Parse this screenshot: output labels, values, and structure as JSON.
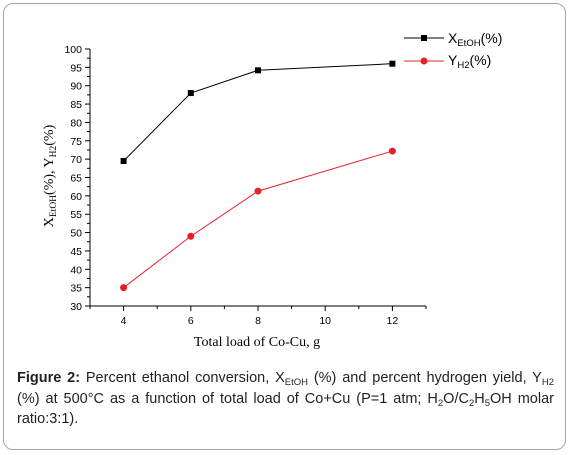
{
  "chart_data": {
    "type": "line",
    "x": [
      4,
      6,
      8,
      12
    ],
    "series": [
      {
        "name_main": "X",
        "name_sub": "EtOH",
        "name_suffix": "(%)",
        "color": "#000000",
        "marker": "square",
        "values": [
          69.5,
          88,
          94.2,
          96
        ]
      },
      {
        "name_main": "Y",
        "name_sub": "H2",
        "name_suffix": "(%)",
        "color": "#e8202a",
        "marker": "circle",
        "values": [
          35,
          49,
          61.3,
          72.2
        ]
      }
    ],
    "xlim": [
      3,
      13
    ],
    "ylim": [
      30,
      100
    ],
    "x_ticks": [
      4,
      6,
      8,
      10,
      12
    ],
    "y_ticks": [
      30,
      35,
      40,
      45,
      50,
      55,
      60,
      65,
      70,
      75,
      80,
      85,
      90,
      95,
      100
    ],
    "xlabel": "Total load of Co-Cu, g",
    "ylabel": {
      "p1": "X",
      "s1": "EtOH",
      "p2": "(%), Y",
      "s2": "H2",
      "p3": "(%)"
    },
    "legend_position": "top-right",
    "grid": false
  },
  "caption": {
    "label": "Figure 2:",
    "t1": " Percent ethanol conversion, X",
    "s1": "EtOH",
    "t2": " (%) and percent hydrogen yield, Y",
    "s2": "H2",
    "t3": " (%) at 500°C as a function of total load of Co+Cu (P=1 atm; H",
    "s3": "2",
    "t4": "O/C",
    "s4": "2",
    "t5": "H",
    "s5": "5",
    "t6": "OH molar ratio:3:1)."
  }
}
